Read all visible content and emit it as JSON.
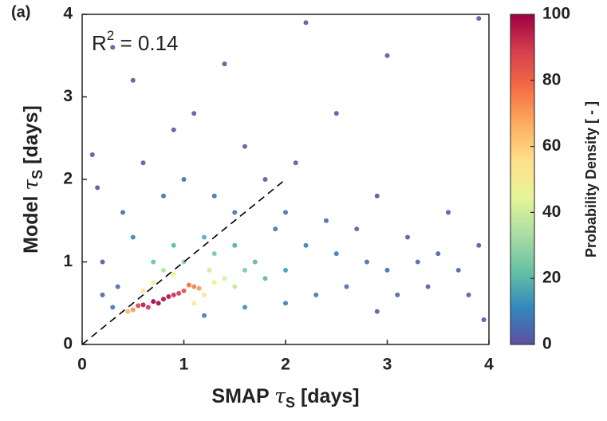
{
  "chart_data": {
    "type": "scatter",
    "panel_label": "(a)",
    "annotation": {
      "base": "R",
      "sup": "2",
      "rest": " = 0.14"
    },
    "x_label": {
      "pre": "SMAP ",
      "symbol": "τ",
      "sub": "S",
      "post": " [days]"
    },
    "y_label": {
      "pre": "Model ",
      "symbol": "τ",
      "sub": "S",
      "post": " [days]"
    },
    "colorbar_label": "Probability Density [ - ]",
    "xlim": [
      0,
      4
    ],
    "ylim": [
      0,
      4
    ],
    "xticks": [
      0,
      1,
      2,
      3,
      4
    ],
    "yticks": [
      0,
      1,
      2,
      3,
      4
    ],
    "clim": [
      0,
      100
    ],
    "cticks": [
      0,
      20,
      40,
      60,
      80,
      100
    ],
    "colormap": [
      "#5e4fa2",
      "#3288bd",
      "#66c2a5",
      "#abdda4",
      "#e6f598",
      "#fee08b",
      "#fdae61",
      "#f46d43",
      "#d53e4f",
      "#9e0142"
    ],
    "reference_line": {
      "x": [
        0,
        2
      ],
      "y": [
        0,
        2
      ]
    },
    "x": [
      0.6,
      0.7,
      0.8,
      0.9,
      0.75,
      0.65,
      1.0,
      0.85,
      0.55,
      0.95,
      1.1,
      1.15,
      0.5,
      0.45,
      1.05,
      1.2,
      1.3,
      0.7,
      0.9,
      1.4,
      1.1,
      0.6,
      1.5,
      1.25,
      0.8,
      1.0,
      1.3,
      1.6,
      0.7,
      1.8,
      1.5,
      1.2,
      2.0,
      0.9,
      1.7,
      0.3,
      0.2,
      0.5,
      0.4,
      0.8,
      1.0,
      1.3,
      1.5,
      1.9,
      2.2,
      2.5,
      2.8,
      3.0,
      3.3,
      3.5,
      3.7,
      3.9,
      2.3,
      2.6,
      3.1,
      3.4,
      3.8,
      2.0,
      2.4,
      2.7,
      3.2,
      0.6,
      0.9,
      1.1,
      0.5,
      1.6,
      2.1,
      2.9,
      3.6,
      0.2,
      0.15,
      0.3,
      2.2,
      3.9,
      2.5,
      1.4,
      3.0,
      0.1,
      1.8,
      2.9,
      3.95,
      1.2,
      1.6,
      2.0,
      0.35
    ],
    "y": [
      0.48,
      0.52,
      0.55,
      0.6,
      0.5,
      0.45,
      0.65,
      0.58,
      0.47,
      0.62,
      0.7,
      0.68,
      0.42,
      0.4,
      0.72,
      0.6,
      0.75,
      0.75,
      0.85,
      0.8,
      0.5,
      0.65,
      0.7,
      0.9,
      0.9,
      1.0,
      1.1,
      0.9,
      1.0,
      0.8,
      1.2,
      1.3,
      0.9,
      1.2,
      1.0,
      0.45,
      0.6,
      1.3,
      1.6,
      1.8,
      2.0,
      1.8,
      1.6,
      1.4,
      1.2,
      1.1,
      1.0,
      0.9,
      1.0,
      1.1,
      0.9,
      1.2,
      0.6,
      0.7,
      0.6,
      0.7,
      0.6,
      1.6,
      1.5,
      1.4,
      1.3,
      2.2,
      2.6,
      2.8,
      3.2,
      2.4,
      2.2,
      1.8,
      1.6,
      1.0,
      1.9,
      3.6,
      3.9,
      3.95,
      2.8,
      3.4,
      3.5,
      2.3,
      2.0,
      0.4,
      0.3,
      0.35,
      0.45,
      0.5,
      0.7
    ],
    "density": [
      95,
      100,
      98,
      92,
      99,
      90,
      85,
      97,
      88,
      90,
      75,
      70,
      72,
      65,
      78,
      55,
      50,
      48,
      45,
      42,
      50,
      52,
      38,
      40,
      35,
      28,
      25,
      25,
      22,
      20,
      18,
      18,
      15,
      20,
      20,
      8,
      4,
      10,
      6,
      6,
      5,
      6,
      8,
      8,
      10,
      8,
      7,
      6,
      5,
      4,
      4,
      2,
      8,
      6,
      4,
      3,
      2,
      6,
      5,
      4,
      3,
      2,
      1,
      1,
      1,
      2,
      2,
      1,
      1,
      2,
      1,
      1,
      1,
      1,
      1,
      1,
      1,
      1,
      3,
      2,
      1,
      10,
      12,
      10,
      6
    ]
  }
}
